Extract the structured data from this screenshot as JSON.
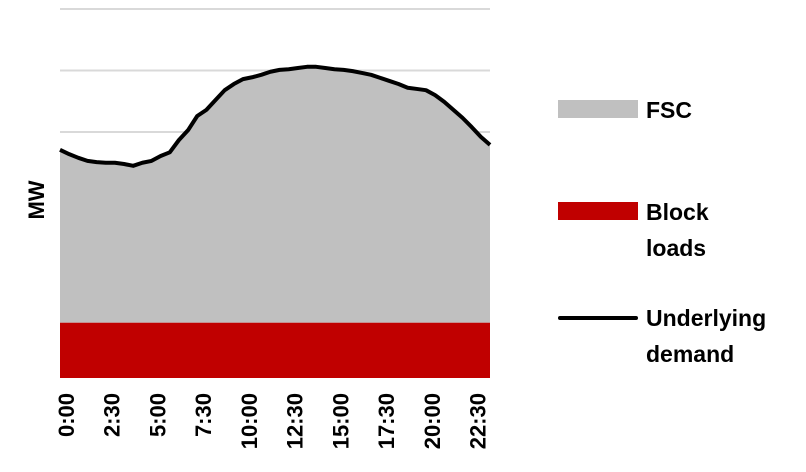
{
  "chart_data": {
    "type": "stacked-area",
    "y_label": "MW",
    "categories": [
      "0:00",
      null,
      null,
      null,
      null,
      "2:30",
      null,
      null,
      null,
      null,
      "5:00",
      null,
      null,
      null,
      null,
      "7:30",
      null,
      null,
      null,
      null,
      "10:00",
      null,
      null,
      null,
      null,
      "12:30",
      null,
      null,
      null,
      null,
      "15:00",
      null,
      null,
      null,
      null,
      "17:30",
      null,
      null,
      null,
      null,
      "20:00",
      null,
      null,
      null,
      null,
      "22:30",
      null,
      null
    ],
    "ylim": [
      0,
      6
    ],
    "yticks": [
      1,
      2,
      3,
      4,
      5,
      6
    ],
    "grid": true,
    "series": [
      {
        "name": "FSC",
        "color": "#c0c0c0",
        "kind": "area",
        "values": [
          2.81,
          2.74,
          2.68,
          2.63,
          2.61,
          2.6,
          2.6,
          2.58,
          2.55,
          2.6,
          2.63,
          2.71,
          2.77,
          2.97,
          3.13,
          3.36,
          3.46,
          3.62,
          3.78,
          3.88,
          3.96,
          3.99,
          4.03,
          4.08,
          4.11,
          4.12,
          4.14,
          4.16,
          4.16,
          4.14,
          4.12,
          4.11,
          4.09,
          4.06,
          4.03,
          3.98,
          3.93,
          3.88,
          3.82,
          3.8,
          3.78,
          3.7,
          3.59,
          3.46,
          3.33,
          3.18,
          3.02,
          2.89
        ]
      },
      {
        "name": "Block loads",
        "color": "#c00000",
        "kind": "area",
        "values": [
          0.9,
          0.9,
          0.9,
          0.9,
          0.9,
          0.9,
          0.9,
          0.9,
          0.9,
          0.9,
          0.9,
          0.9,
          0.9,
          0.9,
          0.9,
          0.9,
          0.9,
          0.9,
          0.9,
          0.9,
          0.9,
          0.9,
          0.9,
          0.9,
          0.9,
          0.9,
          0.9,
          0.9,
          0.9,
          0.9,
          0.9,
          0.9,
          0.9,
          0.9,
          0.9,
          0.9,
          0.9,
          0.9,
          0.9,
          0.9,
          0.9,
          0.9,
          0.9,
          0.9,
          0.9,
          0.9,
          0.9,
          0.9
        ]
      },
      {
        "name": "Underlying demand",
        "color": "#000000",
        "kind": "line",
        "values": [
          3.71,
          3.64,
          3.58,
          3.53,
          3.51,
          3.5,
          3.5,
          3.48,
          3.45,
          3.5,
          3.53,
          3.61,
          3.67,
          3.87,
          4.03,
          4.26,
          4.36,
          4.52,
          4.68,
          4.78,
          4.86,
          4.89,
          4.93,
          4.98,
          5.01,
          5.02,
          5.04,
          5.06,
          5.06,
          5.04,
          5.02,
          5.01,
          4.99,
          4.96,
          4.93,
          4.88,
          4.83,
          4.78,
          4.72,
          4.7,
          4.68,
          4.6,
          4.49,
          4.36,
          4.23,
          4.08,
          3.92,
          3.79
        ]
      }
    ]
  }
}
